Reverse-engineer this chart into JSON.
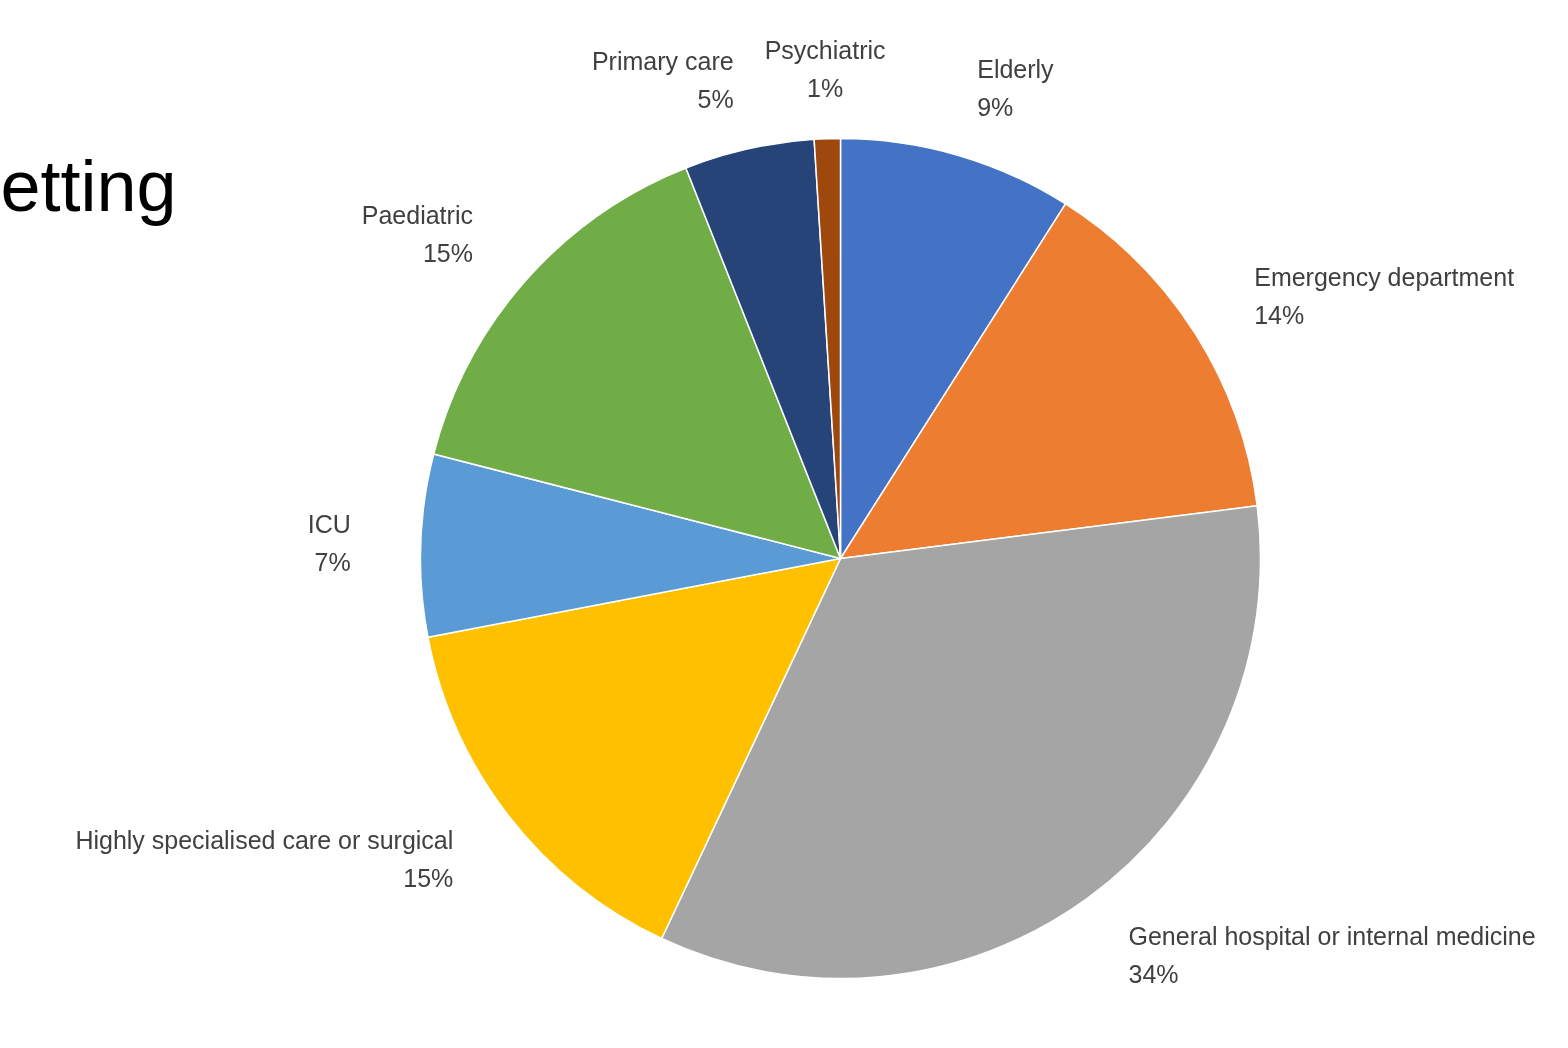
{
  "chart_data": {
    "type": "pie",
    "title": "etting",
    "categories": [
      "Elderly",
      "Emergency department",
      "General hospital or internal medicine",
      "Highly specialised care or surgical",
      "ICU",
      "Paediatric",
      "Primary care",
      "Psychiatric"
    ],
    "values": [
      9,
      14,
      34,
      15,
      7,
      15,
      5,
      1
    ],
    "colors": [
      "#4472c4",
      "#ed7d31",
      "#a5a5a5",
      "#ffc000",
      "#5b9bd5",
      "#70ad47",
      "#264478",
      "#9e480e"
    ],
    "value_labels": [
      "9%",
      "14%",
      "34%",
      "15%",
      "7%",
      "15%",
      "5%",
      "1%"
    ]
  }
}
